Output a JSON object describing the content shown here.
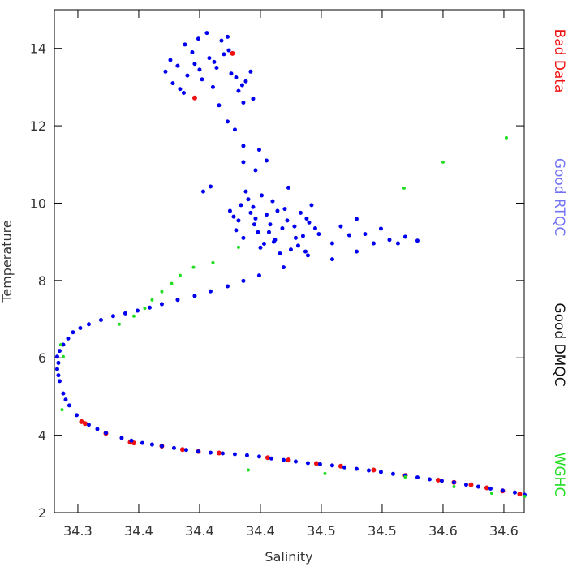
{
  "chart_data": {
    "type": "scatter",
    "x_label": "Salinity",
    "y_label": "Temperature",
    "xlim": [
      34.2807,
      34.6667
    ],
    "ylim": [
      2,
      15.0
    ],
    "xticks": [
      {
        "value": 34.3,
        "label": "34.3"
      },
      {
        "value": 34.35,
        "label": "34.4"
      },
      {
        "value": 34.4,
        "label": "34.4"
      },
      {
        "value": 34.45,
        "label": "34.4"
      },
      {
        "value": 34.5,
        "label": "34.5"
      },
      {
        "value": 34.55,
        "label": "34.5"
      },
      {
        "value": 34.6,
        "label": "34.6"
      },
      {
        "value": 34.65,
        "label": "34.6"
      }
    ],
    "yticks": [
      2,
      4,
      6,
      8,
      10,
      12,
      14
    ],
    "legend": "right",
    "series": [
      {
        "name": "Bad Data",
        "color": "#ee1111",
        "x": [
          34.427,
          34.396,
          34.303,
          34.306,
          34.323,
          34.343,
          34.346,
          34.369,
          34.386,
          34.399,
          34.416,
          34.456,
          34.473,
          34.496,
          34.516,
          34.543,
          34.569,
          34.596,
          34.609,
          34.623,
          34.636,
          34.649,
          34.663
        ],
        "values": [
          13.87,
          12.72,
          4.35,
          4.3,
          4.05,
          3.82,
          3.8,
          3.72,
          3.63,
          3.58,
          3.54,
          3.42,
          3.36,
          3.27,
          3.2,
          3.1,
          2.96,
          2.84,
          2.78,
          2.72,
          2.64,
          2.56,
          2.48
        ]
      },
      {
        "name": "Good RTQC",
        "color": "#0000ee",
        "x": [
          34.667,
          34.649,
          34.629,
          34.609,
          34.589,
          34.569,
          34.549,
          34.529,
          34.509,
          34.489,
          34.469,
          34.449,
          34.429,
          34.409,
          34.389,
          34.369,
          34.353,
          34.336,
          34.323,
          34.309,
          34.299,
          34.293,
          34.288,
          34.285,
          34.283,
          34.283,
          34.288,
          34.296,
          34.309,
          34.329,
          34.349,
          34.369,
          34.396,
          34.423,
          34.449,
          34.469,
          34.489,
          34.509,
          34.523,
          34.579,
          34.659,
          34.639,
          34.619,
          34.599,
          34.579,
          34.559,
          34.539,
          34.519,
          34.499,
          34.479,
          34.459,
          34.439,
          34.419,
          34.399,
          34.379,
          34.361,
          34.344,
          34.316,
          34.29,
          34.284,
          34.284,
          34.285,
          34.292,
          34.302,
          34.319,
          34.339,
          34.359,
          34.382,
          34.409,
          34.436,
          34.529,
          34.549,
          34.569,
          34.543,
          34.563,
          34.529,
          34.509,
          34.556,
          34.536,
          34.516,
          34.425,
          34.432,
          34.44,
          34.448,
          34.455,
          34.462,
          34.47,
          34.478,
          34.485,
          34.492,
          34.43,
          34.438,
          34.446,
          34.453,
          34.46,
          34.468,
          34.475,
          34.483,
          34.49,
          34.498,
          34.428,
          34.436,
          34.444,
          34.451,
          34.458,
          34.466,
          34.473,
          34.481,
          34.488,
          34.495,
          34.434,
          34.442,
          34.45,
          34.457,
          34.464,
          34.472,
          34.479,
          34.487,
          34.445,
          34.461,
          34.436,
          34.429,
          34.423,
          34.416,
          34.436,
          34.409,
          34.449,
          34.446,
          34.403,
          34.455,
          34.372,
          34.378,
          34.384,
          34.39,
          34.396,
          34.402,
          34.408,
          34.414,
          34.42,
          34.426,
          34.432,
          34.438,
          34.444,
          34.376,
          34.382,
          34.388,
          34.394,
          34.4,
          34.406,
          34.412,
          34.418,
          34.424,
          34.43,
          34.436,
          34.442,
          34.387,
          34.399,
          34.411,
          34.423,
          34.435
        ],
        "values": [
          2.46,
          2.57,
          2.67,
          2.78,
          2.86,
          2.96,
          3.05,
          3.13,
          3.22,
          3.28,
          3.36,
          3.45,
          3.51,
          3.55,
          3.62,
          3.72,
          3.8,
          3.93,
          4.06,
          4.27,
          4.52,
          4.77,
          5.08,
          5.4,
          5.71,
          6.03,
          6.34,
          6.66,
          6.87,
          7.08,
          7.22,
          7.39,
          7.6,
          7.85,
          8.13,
          8.34,
          8.65,
          8.96,
          9.17,
          9.03,
          2.52,
          2.62,
          2.72,
          2.82,
          2.91,
          3.0,
          3.09,
          3.17,
          3.25,
          3.32,
          3.4,
          3.48,
          3.53,
          3.58,
          3.67,
          3.76,
          3.86,
          4.16,
          4.92,
          5.55,
          5.87,
          6.18,
          6.5,
          6.77,
          6.98,
          7.15,
          7.3,
          7.5,
          7.72,
          7.99,
          9.59,
          9.34,
          9.13,
          8.96,
          8.96,
          8.75,
          8.55,
          9.05,
          9.2,
          9.4,
          9.8,
          9.55,
          10.1,
          9.25,
          9.7,
          9.05,
          9.85,
          9.4,
          9.15,
          9.95,
          9.3,
          10.3,
          9.6,
          8.95,
          10.05,
          9.35,
          8.8,
          9.75,
          9.5,
          9.2,
          9.65,
          9.1,
          9.9,
          10.2,
          9.45,
          8.7,
          10.4,
          8.9,
          9.6,
          9.35,
          9.95,
          9.75,
          8.85,
          9.25,
          9.8,
          9.55,
          9.1,
          8.75,
          9.45,
          9.0,
          11.48,
          11.9,
          12.11,
          12.53,
          11.06,
          10.43,
          11.38,
          10.85,
          10.3,
          11.1,
          13.4,
          13.1,
          12.95,
          13.3,
          13.6,
          13.2,
          13.75,
          13.5,
          13.85,
          13.35,
          12.9,
          13.15,
          12.7,
          13.7,
          13.55,
          14.1,
          13.9,
          13.45,
          14.4,
          13.65,
          14.2,
          13.95,
          13.25,
          12.6,
          13.4,
          12.85,
          14.25,
          13.0,
          14.3,
          13.05
        ]
      },
      {
        "name": "Good DMQC",
        "color": "#111111",
        "x": [],
        "values": []
      },
      {
        "name": "WGHC",
        "color": "#22dd22",
        "x": [
          34.286,
          34.287,
          34.288,
          34.334,
          34.346,
          34.355,
          34.361,
          34.369,
          34.377,
          34.384,
          34.395,
          34.411,
          34.432,
          34.568,
          34.6,
          34.652,
          34.569,
          34.609,
          34.64,
          34.667,
          34.503,
          34.44
        ],
        "values": [
          6.34,
          4.66,
          6.03,
          6.87,
          7.08,
          7.28,
          7.5,
          7.71,
          7.92,
          8.13,
          8.34,
          8.46,
          8.86,
          10.39,
          11.06,
          11.69,
          2.92,
          2.67,
          2.5,
          2.42,
          3.01,
          3.1
        ]
      }
    ]
  }
}
